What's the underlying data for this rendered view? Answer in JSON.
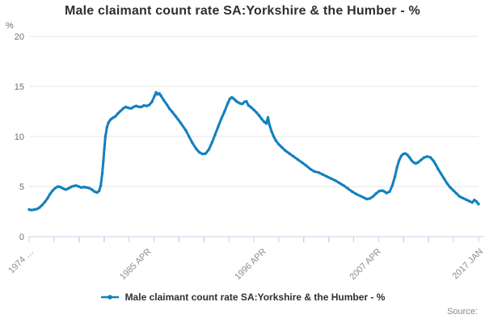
{
  "title": "Male claimant count rate SA:Yorkshire & the Humber - %",
  "source_label": "Source:",
  "y_axis": {
    "unit": "%",
    "ticks": [
      0,
      5,
      10,
      15,
      20
    ]
  },
  "x_axis": {
    "minor_tick_count": 19,
    "tick_labels": [
      {
        "pos": 1974.0,
        "label": "1974 …"
      },
      {
        "pos": 1985.25,
        "label": "1985 APR"
      },
      {
        "pos": 1996.25,
        "label": "1996 APR"
      },
      {
        "pos": 2007.25,
        "label": "2007 APR"
      },
      {
        "pos": 2017.0,
        "label": "2017 JAN"
      }
    ]
  },
  "legend": {
    "label": "Male claimant count rate SA:Yorkshire & the Humber - %"
  },
  "colors": {
    "line": "#1380BE",
    "grid": "#e6e6e6",
    "axis": "#c9d3e6",
    "tick_text": "#8c8c8c",
    "y_text": "#6e6e6e"
  },
  "chart_data": {
    "type": "line",
    "title": "Male claimant count rate SA:Yorkshire & the Humber - %",
    "xlabel": "",
    "ylabel": "%",
    "ylim": [
      0,
      20
    ],
    "x_range": [
      1974,
      2017
    ],
    "grid": true,
    "legend_position": "bottom",
    "series": [
      {
        "name": "Male claimant count rate SA:Yorkshire & the Humber - %",
        "color": "#1380BE",
        "points": [
          [
            1974.0,
            2.7
          ],
          [
            1974.25,
            2.65
          ],
          [
            1974.5,
            2.7
          ],
          [
            1974.75,
            2.75
          ],
          [
            1975.0,
            2.9
          ],
          [
            1975.25,
            3.15
          ],
          [
            1975.5,
            3.45
          ],
          [
            1975.75,
            3.8
          ],
          [
            1976.0,
            4.25
          ],
          [
            1976.25,
            4.6
          ],
          [
            1976.5,
            4.85
          ],
          [
            1976.75,
            5.0
          ],
          [
            1977.0,
            4.95
          ],
          [
            1977.25,
            4.8
          ],
          [
            1977.5,
            4.7
          ],
          [
            1977.75,
            4.8
          ],
          [
            1978.0,
            4.95
          ],
          [
            1978.25,
            5.05
          ],
          [
            1978.5,
            5.1
          ],
          [
            1978.75,
            5.0
          ],
          [
            1979.0,
            4.9
          ],
          [
            1979.25,
            4.95
          ],
          [
            1979.5,
            4.9
          ],
          [
            1979.75,
            4.85
          ],
          [
            1980.0,
            4.7
          ],
          [
            1980.25,
            4.5
          ],
          [
            1980.5,
            4.4
          ],
          [
            1980.7,
            4.55
          ],
          [
            1980.85,
            5.1
          ],
          [
            1981.0,
            6.3
          ],
          [
            1981.1,
            7.5
          ],
          [
            1981.2,
            8.8
          ],
          [
            1981.3,
            10.0
          ],
          [
            1981.45,
            10.9
          ],
          [
            1981.6,
            11.4
          ],
          [
            1981.8,
            11.7
          ],
          [
            1982.0,
            11.85
          ],
          [
            1982.25,
            12.0
          ],
          [
            1982.5,
            12.3
          ],
          [
            1982.75,
            12.55
          ],
          [
            1983.0,
            12.8
          ],
          [
            1983.25,
            12.95
          ],
          [
            1983.5,
            12.85
          ],
          [
            1983.75,
            12.8
          ],
          [
            1984.0,
            12.95
          ],
          [
            1984.25,
            13.05
          ],
          [
            1984.5,
            12.95
          ],
          [
            1984.75,
            12.95
          ],
          [
            1985.0,
            13.1
          ],
          [
            1985.25,
            13.05
          ],
          [
            1985.5,
            13.15
          ],
          [
            1985.75,
            13.45
          ],
          [
            1986.0,
            14.05
          ],
          [
            1986.15,
            14.4
          ],
          [
            1986.3,
            14.2
          ],
          [
            1986.45,
            14.3
          ],
          [
            1986.6,
            14.1
          ],
          [
            1986.9,
            13.6
          ],
          [
            1987.2,
            13.15
          ],
          [
            1987.45,
            12.75
          ],
          [
            1987.7,
            12.45
          ],
          [
            1988.0,
            12.05
          ],
          [
            1988.25,
            11.7
          ],
          [
            1988.5,
            11.35
          ],
          [
            1989.0,
            10.6
          ],
          [
            1989.3,
            10.0
          ],
          [
            1989.6,
            9.4
          ],
          [
            1990.0,
            8.75
          ],
          [
            1990.3,
            8.4
          ],
          [
            1990.6,
            8.25
          ],
          [
            1990.9,
            8.3
          ],
          [
            1991.2,
            8.7
          ],
          [
            1991.5,
            9.4
          ],
          [
            1991.8,
            10.2
          ],
          [
            1992.1,
            11.0
          ],
          [
            1992.4,
            11.8
          ],
          [
            1992.7,
            12.5
          ],
          [
            1993.0,
            13.3
          ],
          [
            1993.2,
            13.75
          ],
          [
            1993.4,
            13.9
          ],
          [
            1993.6,
            13.75
          ],
          [
            1993.8,
            13.55
          ],
          [
            1994.0,
            13.4
          ],
          [
            1994.2,
            13.3
          ],
          [
            1994.4,
            13.25
          ],
          [
            1994.6,
            13.45
          ],
          [
            1994.8,
            13.5
          ],
          [
            1995.0,
            13.1
          ],
          [
            1995.25,
            12.9
          ],
          [
            1995.5,
            12.65
          ],
          [
            1995.75,
            12.4
          ],
          [
            1996.0,
            12.1
          ],
          [
            1996.25,
            11.75
          ],
          [
            1996.5,
            11.45
          ],
          [
            1996.7,
            11.3
          ],
          [
            1996.85,
            11.9
          ],
          [
            1997.0,
            11.15
          ],
          [
            1997.2,
            10.5
          ],
          [
            1997.4,
            10.0
          ],
          [
            1997.6,
            9.6
          ],
          [
            1997.9,
            9.2
          ],
          [
            1998.2,
            8.9
          ],
          [
            1998.5,
            8.6
          ],
          [
            1998.9,
            8.3
          ],
          [
            1999.3,
            8.0
          ],
          [
            1999.7,
            7.7
          ],
          [
            2000.1,
            7.4
          ],
          [
            2000.5,
            7.1
          ],
          [
            2000.9,
            6.75
          ],
          [
            2001.3,
            6.5
          ],
          [
            2001.7,
            6.4
          ],
          [
            2002.1,
            6.2
          ],
          [
            2002.5,
            6.0
          ],
          [
            2002.9,
            5.8
          ],
          [
            2003.3,
            5.6
          ],
          [
            2003.7,
            5.35
          ],
          [
            2004.1,
            5.1
          ],
          [
            2004.5,
            4.8
          ],
          [
            2004.9,
            4.5
          ],
          [
            2005.3,
            4.25
          ],
          [
            2005.7,
            4.05
          ],
          [
            2006.0,
            3.9
          ],
          [
            2006.3,
            3.75
          ],
          [
            2006.6,
            3.8
          ],
          [
            2006.9,
            4.0
          ],
          [
            2007.2,
            4.3
          ],
          [
            2007.5,
            4.55
          ],
          [
            2007.8,
            4.6
          ],
          [
            2008.0,
            4.5
          ],
          [
            2008.2,
            4.35
          ],
          [
            2008.5,
            4.5
          ],
          [
            2008.75,
            5.1
          ],
          [
            2009.0,
            6.0
          ],
          [
            2009.2,
            6.9
          ],
          [
            2009.4,
            7.6
          ],
          [
            2009.6,
            8.05
          ],
          [
            2009.8,
            8.25
          ],
          [
            2010.0,
            8.3
          ],
          [
            2010.2,
            8.15
          ],
          [
            2010.4,
            7.9
          ],
          [
            2010.6,
            7.6
          ],
          [
            2010.8,
            7.4
          ],
          [
            2011.0,
            7.3
          ],
          [
            2011.2,
            7.4
          ],
          [
            2011.5,
            7.65
          ],
          [
            2011.8,
            7.9
          ],
          [
            2012.1,
            8.0
          ],
          [
            2012.4,
            7.9
          ],
          [
            2012.7,
            7.55
          ],
          [
            2012.9,
            7.2
          ],
          [
            2013.1,
            6.8
          ],
          [
            2013.4,
            6.3
          ],
          [
            2013.7,
            5.8
          ],
          [
            2014.0,
            5.3
          ],
          [
            2014.3,
            4.9
          ],
          [
            2014.6,
            4.6
          ],
          [
            2014.9,
            4.3
          ],
          [
            2015.2,
            4.0
          ],
          [
            2015.5,
            3.85
          ],
          [
            2015.8,
            3.7
          ],
          [
            2016.1,
            3.55
          ],
          [
            2016.4,
            3.4
          ],
          [
            2016.6,
            3.65
          ],
          [
            2016.8,
            3.5
          ],
          [
            2017.0,
            3.25
          ]
        ]
      }
    ]
  }
}
